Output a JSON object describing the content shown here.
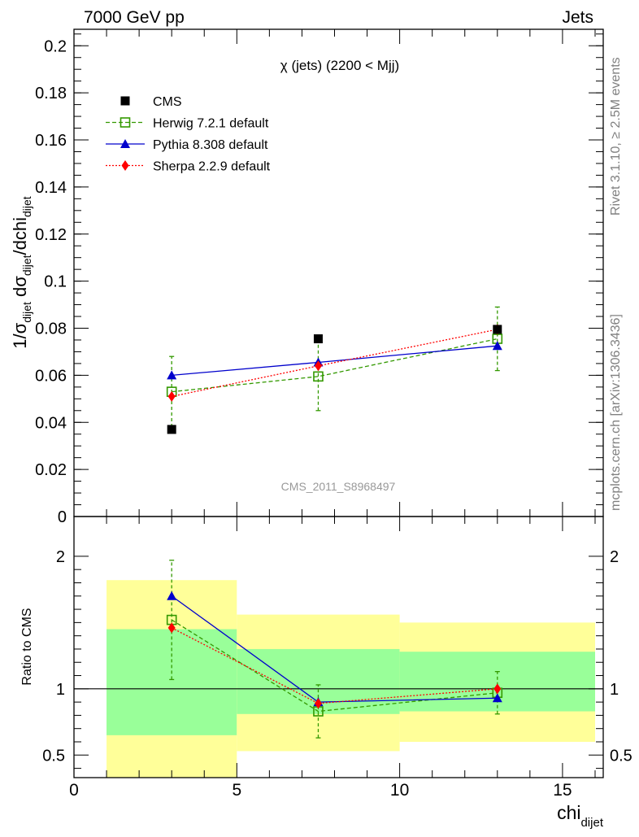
{
  "header": {
    "left": "7000 GeV pp",
    "right": "Jets"
  },
  "side": {
    "rivet": "Rivet 3.1.10, ≥ 2.5M events",
    "mcplots": "mcplots.cern.ch [arXiv:1306.3436]"
  },
  "watermark": "CMS_2011_S8968497",
  "colors": {
    "data": "#000000",
    "herwig": "#339900",
    "pythia": "#0000cc",
    "sherpa": "#ff0000",
    "band_inner": "#99ff99",
    "band_outer": "#ffff99"
  },
  "chart_data": [
    {
      "type": "scatter",
      "title": "χ (jets) (2200 < Mjj)",
      "ylabel": "1/σ_dijet dσ_dijet/dchi_dijet",
      "xlim": [
        0,
        16.25
      ],
      "ylim": [
        0,
        0.207
      ],
      "yticks": [
        0,
        0.02,
        0.04,
        0.06,
        0.08,
        0.1,
        0.12,
        0.14,
        0.16,
        0.18,
        0.2
      ],
      "ytick_labels": [
        "0",
        "0.02",
        "0.04",
        "0.06",
        "0.08",
        "0.1",
        "0.12",
        "0.14",
        "0.16",
        "0.18",
        "0.2"
      ],
      "legend_position": "top-left",
      "series": [
        {
          "name": "CMS",
          "style": "data",
          "x": [
            3,
            7.5,
            13
          ],
          "y": [
            0.037,
            0.0755,
            0.0795
          ]
        },
        {
          "name": "Herwig 7.2.1 default",
          "style": "herwig",
          "x": [
            3,
            7.5,
            13
          ],
          "y": [
            0.053,
            0.0595,
            0.0755
          ],
          "yerr": [
            0.015,
            0.0145,
            0.0135
          ]
        },
        {
          "name": "Pythia 8.308 default",
          "style": "pythia",
          "x": [
            3,
            7.5,
            13
          ],
          "y": [
            0.06,
            0.0655,
            0.0725
          ]
        },
        {
          "name": "Sherpa 2.2.9 default",
          "style": "sherpa",
          "x": [
            3,
            7.5,
            13
          ],
          "y": [
            0.051,
            0.064,
            0.0795
          ]
        }
      ]
    },
    {
      "type": "scatter",
      "ylabel": "Ratio to CMS",
      "xlabel": "chi_dijet",
      "xlim": [
        0,
        16.25
      ],
      "ylim": [
        0.33,
        2.3
      ],
      "yticks": [
        0.5,
        1,
        2
      ],
      "ytick_labels": [
        "0.5",
        "1",
        "2"
      ],
      "xticks": [
        0,
        5,
        10,
        15
      ],
      "xtick_labels": [
        "0",
        "5",
        "10",
        "15"
      ],
      "bands": [
        {
          "x0": 1,
          "x1": 5,
          "inner": [
            0.65,
            1.45
          ],
          "outer": [
            0.33,
            1.82
          ]
        },
        {
          "x0": 5,
          "x1": 10,
          "inner": [
            0.81,
            1.3
          ],
          "outer": [
            0.53,
            1.56
          ]
        },
        {
          "x0": 10,
          "x1": 16,
          "inner": [
            0.83,
            1.28
          ],
          "outer": [
            0.6,
            1.5
          ]
        }
      ],
      "series": [
        {
          "name": "Herwig 7.2.1 default",
          "style": "herwig",
          "x": [
            3,
            7.5,
            13
          ],
          "y": [
            1.52,
            0.83,
            0.97
          ],
          "yerr": [
            0.45,
            0.2,
            0.16
          ]
        },
        {
          "name": "Pythia 8.308 default",
          "style": "pythia",
          "x": [
            3,
            7.5,
            13
          ],
          "y": [
            1.7,
            0.9,
            0.93
          ]
        },
        {
          "name": "Sherpa 2.2.9 default",
          "style": "sherpa",
          "x": [
            3,
            7.5,
            13
          ],
          "y": [
            1.46,
            0.89,
            1.0
          ]
        }
      ]
    }
  ]
}
